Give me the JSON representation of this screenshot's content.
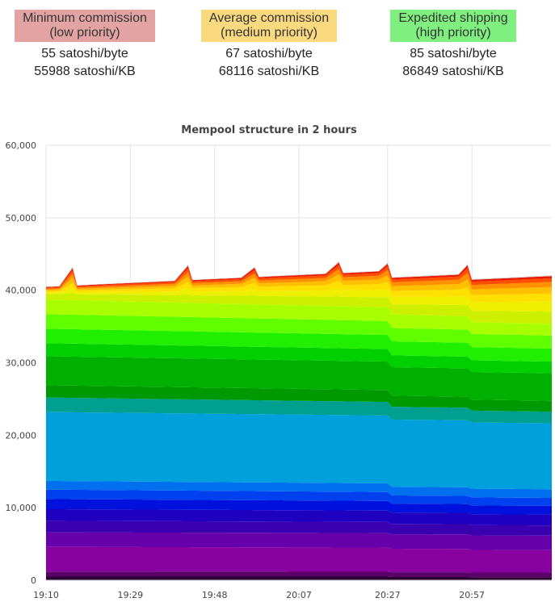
{
  "fees": [
    {
      "label_line1": "Minimum commission",
      "label_line2": "(low priority)",
      "color": "#e4a3a3",
      "per_byte": "55 satoshi/byte",
      "per_kb": "55988 satoshi/KB"
    },
    {
      "label_line1": "Average commission",
      "label_line2": "(medium priority)",
      "color": "#fbd97f",
      "per_byte": "67 satoshi/byte",
      "per_kb": "68116 satoshi/KB"
    },
    {
      "label_line1": "Expedited shipping",
      "label_line2": "(high priority)",
      "color": "#7ff07f",
      "per_byte": "85 satoshi/byte",
      "per_kb": "86849 satoshi/KB"
    }
  ],
  "chart_data": {
    "type": "area",
    "stacked": true,
    "title": "Mempool structure in 2 hours",
    "ylim": [
      0,
      60000
    ],
    "y_ticks": [
      "0",
      "10,000",
      "20,000",
      "30,000",
      "40,000",
      "50,000",
      "60,000"
    ],
    "y_tick_values": [
      0,
      10000,
      20000,
      30000,
      40000,
      50000,
      60000
    ],
    "x_ticks": [
      "19:10",
      "19:29",
      "19:48",
      "20:07",
      "20:27",
      "20:57"
    ],
    "x_tick_index": [
      0,
      19,
      38,
      57,
      77,
      96
    ],
    "grid": true,
    "x_count": 115,
    "band_colors": [
      "#2a0033",
      "#5a0066",
      "#8800a0",
      "#6600aa",
      "#3a00b0",
      "#2000c0",
      "#0010dd",
      "#0040ee",
      "#0070ee",
      "#00a0dd",
      "#009f90",
      "#009900",
      "#00b000",
      "#00d000",
      "#20f000",
      "#60ff00",
      "#a8ff00",
      "#ccf000",
      "#eef000",
      "#ffe000",
      "#ffc000",
      "#ff9000",
      "#ff5000",
      "#ee1800",
      "#cccccc"
    ],
    "bands": [
      {
        "start": 500,
        "end": 500,
        "drops": [
          [
            78,
            -60
          ],
          [
            96,
            -40
          ]
        ]
      },
      {
        "start": 700,
        "end": 650,
        "drops": []
      },
      {
        "start": 3400,
        "end": 3300,
        "drops": [
          [
            78,
            -100
          ],
          [
            96,
            -100
          ]
        ]
      },
      {
        "start": 2000,
        "end": 2000,
        "drops": []
      },
      {
        "start": 1600,
        "end": 1500,
        "drops": [
          [
            78,
            -100
          ]
        ]
      },
      {
        "start": 1600,
        "end": 1550,
        "drops": [
          [
            96,
            -50
          ]
        ]
      },
      {
        "start": 1400,
        "end": 1300,
        "drops": [
          [
            78,
            -100
          ]
        ]
      },
      {
        "start": 1300,
        "end": 1200,
        "drops": [
          [
            78,
            -100
          ]
        ]
      },
      {
        "start": 1200,
        "end": 1200,
        "drops": []
      },
      {
        "start": 9500,
        "end": 9300,
        "drops": [
          [
            78,
            -100
          ],
          [
            96,
            -100
          ]
        ]
      },
      {
        "start": 2000,
        "end": 1800,
        "drops": [
          [
            78,
            -100
          ],
          [
            96,
            -100
          ]
        ]
      },
      {
        "start": 1700,
        "end": 1600,
        "drops": [
          [
            78,
            -100
          ]
        ]
      },
      {
        "start": 4000,
        "end": 3900,
        "drops": [
          [
            96,
            -100
          ]
        ]
      },
      {
        "start": 1800,
        "end": 1700,
        "drops": [
          [
            78,
            -100
          ]
        ]
      },
      {
        "start": 2000,
        "end": 1900,
        "drops": [
          [
            96,
            -100
          ]
        ]
      },
      {
        "start": 2000,
        "end": 1900,
        "drops": [
          [
            78,
            -100
          ]
        ]
      },
      {
        "start": 2000,
        "end": 1800,
        "drops": [
          [
            96,
            -200
          ]
        ]
      },
      {
        "start": 800,
        "end": 1700,
        "drops": []
      },
      {
        "start": 200,
        "end": 1400,
        "drops": []
      },
      {
        "start": 200,
        "end": 1100,
        "drops": []
      },
      {
        "start": 150,
        "end": 900,
        "drops": []
      },
      {
        "start": 150,
        "end": 700,
        "drops": []
      },
      {
        "start": 150,
        "end": 500,
        "drops": []
      },
      {
        "start": 100,
        "end": 300,
        "drops": []
      },
      {
        "start": 50,
        "end": 100,
        "drops": []
      }
    ],
    "spikes": [
      {
        "at": 7,
        "pre_len": 3,
        "extra": [
          0,
          0,
          0,
          0,
          0,
          0,
          0,
          0,
          0,
          0,
          0,
          0,
          0,
          0,
          0,
          0,
          0,
          150,
          400,
          500,
          500,
          400,
          300,
          200,
          100
        ]
      },
      {
        "at": 33,
        "pre_len": 3,
        "extra": [
          0,
          0,
          0,
          0,
          0,
          0,
          0,
          0,
          0,
          0,
          0,
          0,
          0,
          0,
          0,
          0,
          0,
          150,
          300,
          400,
          400,
          300,
          250,
          200,
          150
        ]
      },
      {
        "at": 48,
        "pre_len": 3,
        "extra": [
          0,
          0,
          0,
          0,
          0,
          0,
          0,
          0,
          0,
          0,
          0,
          0,
          0,
          0,
          0,
          0,
          0,
          100,
          200,
          250,
          250,
          200,
          150,
          150,
          100
        ]
      },
      {
        "at": 67,
        "pre_len": 3,
        "extra": [
          0,
          0,
          0,
          0,
          0,
          0,
          0,
          0,
          0,
          0,
          0,
          0,
          0,
          0,
          0,
          0,
          0,
          100,
          200,
          300,
          300,
          250,
          200,
          150,
          100
        ]
      },
      {
        "at": 78,
        "pre_len": 2,
        "extra": [
          0,
          0,
          0,
          0,
          0,
          0,
          0,
          0,
          0,
          0,
          0,
          0,
          0,
          0,
          0,
          0,
          0,
          0,
          100,
          200,
          250,
          200,
          150,
          100,
          100
        ]
      },
      {
        "at": 96,
        "pre_len": 2,
        "extra": [
          0,
          0,
          0,
          0,
          0,
          0,
          0,
          0,
          0,
          0,
          0,
          0,
          0,
          0,
          0,
          0,
          0,
          0,
          100,
          200,
          300,
          300,
          200,
          150,
          100
        ]
      }
    ]
  }
}
